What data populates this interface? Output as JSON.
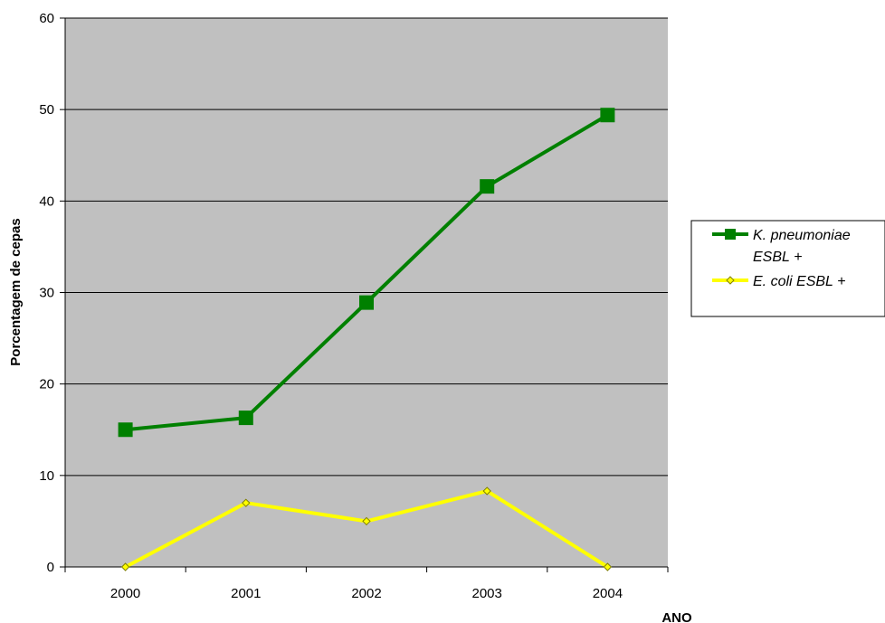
{
  "chart_data": {
    "type": "line",
    "categories": [
      "2000",
      "2001",
      "2002",
      "2003",
      "2004"
    ],
    "series": [
      {
        "name": "K. pneumoniae ESBL +",
        "values": [
          15.0,
          16.3,
          28.9,
          41.6,
          49.4
        ],
        "color": "#008000",
        "marker": "square"
      },
      {
        "name": "E. coli ESBL +",
        "values": [
          0.0,
          7.0,
          5.0,
          8.3,
          0.0
        ],
        "color": "#FFFF00",
        "marker": "diamond"
      }
    ],
    "xlabel": "ANO",
    "ylabel": "Porcentagem de cepas",
    "ylim": [
      0,
      60
    ],
    "yticks": [
      0,
      10,
      20,
      30,
      40,
      50,
      60
    ],
    "grid": true,
    "plot_background": "#C0C0C0",
    "legend_position": "right"
  }
}
